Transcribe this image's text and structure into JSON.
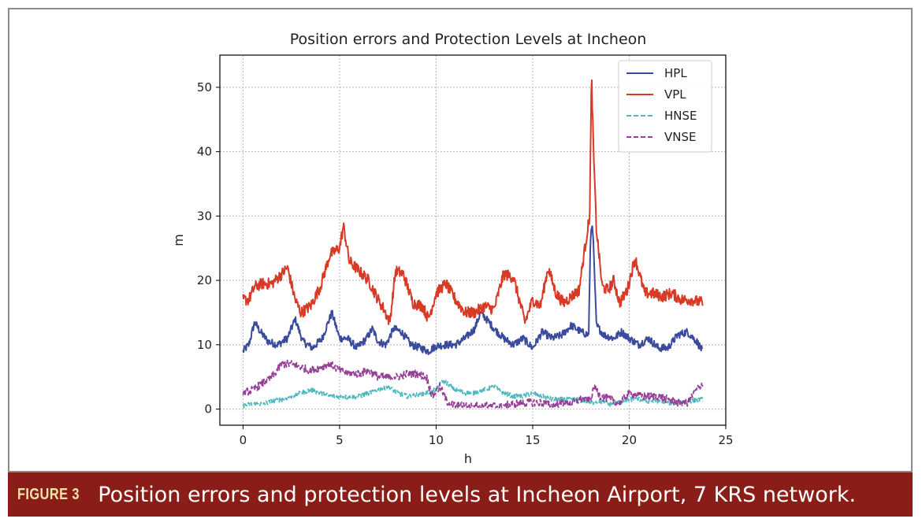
{
  "chart_data": {
    "type": "line",
    "title": "Position errors and Protection Levels at Incheon",
    "xlabel": "h",
    "ylabel": "m",
    "xlim": [
      -1.2,
      25
    ],
    "ylim": [
      -2.5,
      55
    ],
    "xticks": [
      0,
      5,
      10,
      15,
      20,
      25
    ],
    "yticks": [
      0,
      10,
      20,
      30,
      40,
      50
    ],
    "grid": true,
    "legend_position": "top-right",
    "series": [
      {
        "name": "HPL",
        "color": "#3a4a9c",
        "dash": "solid",
        "noise": 0.6,
        "x": [
          0,
          0.3,
          0.6,
          0.9,
          1.3,
          1.8,
          2.3,
          2.7,
          3.1,
          3.6,
          4.1,
          4.6,
          5.0,
          5.4,
          5.9,
          6.4,
          6.7,
          7.0,
          7.4,
          7.8,
          8.2,
          8.7,
          9.2,
          9.6,
          10.0,
          10.5,
          11.0,
          11.5,
          12.0,
          12.3,
          12.6,
          13.0,
          13.5,
          14.0,
          14.5,
          15.0,
          15.5,
          16.0,
          16.5,
          17.0,
          17.5,
          17.9,
          18.0,
          18.1,
          18.3,
          18.7,
          19.2,
          19.6,
          20.0,
          20.5,
          21.0,
          21.5,
          22.0,
          22.5,
          23.0,
          23.5,
          23.8
        ],
        "y": [
          9,
          10,
          13.5,
          12,
          10.5,
          10,
          11,
          14,
          10.5,
          9.5,
          11,
          15,
          11,
          11,
          9.5,
          11,
          12.5,
          10.5,
          10,
          12.5,
          12,
          10,
          9.5,
          9,
          9.8,
          10,
          10,
          11,
          12.5,
          15,
          14,
          12.5,
          11,
          10,
          11,
          9.5,
          12,
          11,
          11.5,
          13,
          12,
          11.5,
          27,
          29,
          13,
          11.5,
          11,
          12,
          11,
          10,
          11,
          9.5,
          9.5,
          11.5,
          12,
          10.5,
          9
        ]
      },
      {
        "name": "VPL",
        "color": "#d93a26",
        "dash": "solid",
        "noise": 0.9,
        "x": [
          0,
          0.3,
          0.6,
          1.0,
          1.5,
          2.0,
          2.3,
          2.7,
          3.0,
          3.5,
          4.0,
          4.5,
          5.0,
          5.2,
          5.5,
          6.0,
          6.5,
          7.0,
          7.3,
          7.6,
          7.9,
          8.3,
          8.8,
          9.3,
          9.6,
          10.0,
          10.5,
          11.0,
          11.5,
          12.0,
          12.5,
          13.0,
          13.5,
          14.0,
          14.3,
          14.6,
          15.0,
          15.4,
          15.8,
          16.2,
          16.6,
          17.0,
          17.4,
          17.7,
          17.95,
          18.05,
          18.15,
          18.3,
          18.6,
          18.9,
          19.2,
          19.5,
          19.9,
          20.3,
          20.8,
          21.2,
          21.7,
          22.2,
          22.7,
          23.2,
          23.8
        ],
        "y": [
          17,
          17,
          19,
          19.5,
          19.5,
          21,
          22,
          17,
          15,
          16,
          19,
          24,
          25,
          28.5,
          23,
          21.5,
          20,
          17,
          15.5,
          13.5,
          21.5,
          21,
          16.5,
          16,
          14,
          18,
          19.5,
          17,
          15,
          15,
          16,
          15.5,
          21,
          20.5,
          17,
          13.5,
          17,
          16,
          22,
          18,
          16.5,
          17.5,
          18.5,
          25,
          30,
          52,
          40,
          28,
          19,
          18.5,
          20,
          16.5,
          18.5,
          23.5,
          18,
          18,
          17.5,
          18,
          17,
          17,
          16.5
        ]
      },
      {
        "name": "HNSE",
        "color": "#4fb8bf",
        "dash": "dashed",
        "noise": 0.35,
        "x": [
          0,
          0.5,
          1.0,
          1.5,
          2.0,
          2.5,
          3.0,
          3.5,
          4.0,
          4.5,
          5.0,
          5.5,
          6.0,
          6.5,
          7.0,
          7.5,
          8.0,
          8.5,
          9.0,
          9.5,
          10.0,
          10.3,
          10.6,
          11.0,
          11.5,
          12.0,
          12.5,
          13.0,
          13.5,
          14.0,
          14.5,
          15.0,
          15.5,
          16.0,
          16.5,
          17.0,
          17.5,
          18.0,
          18.5,
          19.0,
          19.5,
          20.0,
          20.5,
          21.0,
          21.5,
          22.0,
          22.5,
          23.0,
          23.8
        ],
        "y": [
          0.5,
          0.8,
          0.8,
          1.2,
          1.5,
          2,
          2.5,
          3,
          2.5,
          2,
          2,
          1.8,
          2,
          2.5,
          3,
          3.5,
          2.5,
          2,
          2.2,
          2.5,
          3,
          4.5,
          4,
          3,
          2.5,
          2.5,
          3,
          3.5,
          2.5,
          2,
          2,
          2.5,
          2,
          1.5,
          1.5,
          1.5,
          1.5,
          1,
          1.2,
          0.8,
          1,
          1.5,
          1.5,
          1.2,
          1.3,
          1,
          1,
          1.2,
          1.5
        ]
      },
      {
        "name": "VNSE",
        "color": "#953f96",
        "dash": "dashed",
        "noise": 0.6,
        "x": [
          0,
          0.5,
          1.0,
          1.5,
          2.0,
          2.5,
          3.0,
          3.5,
          4.0,
          4.5,
          5.0,
          5.5,
          6.0,
          6.5,
          7.0,
          7.5,
          8.0,
          8.5,
          9.0,
          9.5,
          9.8,
          10.2,
          10.6,
          11.0,
          11.5,
          12.0,
          12.5,
          13.0,
          13.5,
          14.0,
          14.5,
          15.0,
          15.5,
          16.0,
          16.5,
          17.0,
          17.5,
          18.0,
          18.2,
          18.5,
          19.0,
          19.5,
          20.0,
          20.5,
          21.0,
          21.5,
          22.0,
          22.5,
          23.0,
          23.5,
          23.8
        ],
        "y": [
          2.5,
          3,
          4,
          5,
          7,
          7,
          6.5,
          6,
          6.5,
          7,
          6,
          5.5,
          5.5,
          6,
          5,
          5,
          5,
          5.5,
          5.5,
          5,
          2,
          3.5,
          1,
          0.5,
          0.5,
          0.5,
          0.5,
          0.5,
          0.5,
          0.8,
          1,
          1,
          1,
          0.5,
          1,
          1,
          1.5,
          1.5,
          3.5,
          2,
          1.5,
          1,
          2.5,
          2,
          2,
          2,
          1.5,
          1,
          1,
          3,
          4
        ]
      }
    ]
  },
  "caption": {
    "label": "FIGURE 3",
    "text": "Position errors and protection levels at Incheon Airport, 7 KRS network."
  }
}
